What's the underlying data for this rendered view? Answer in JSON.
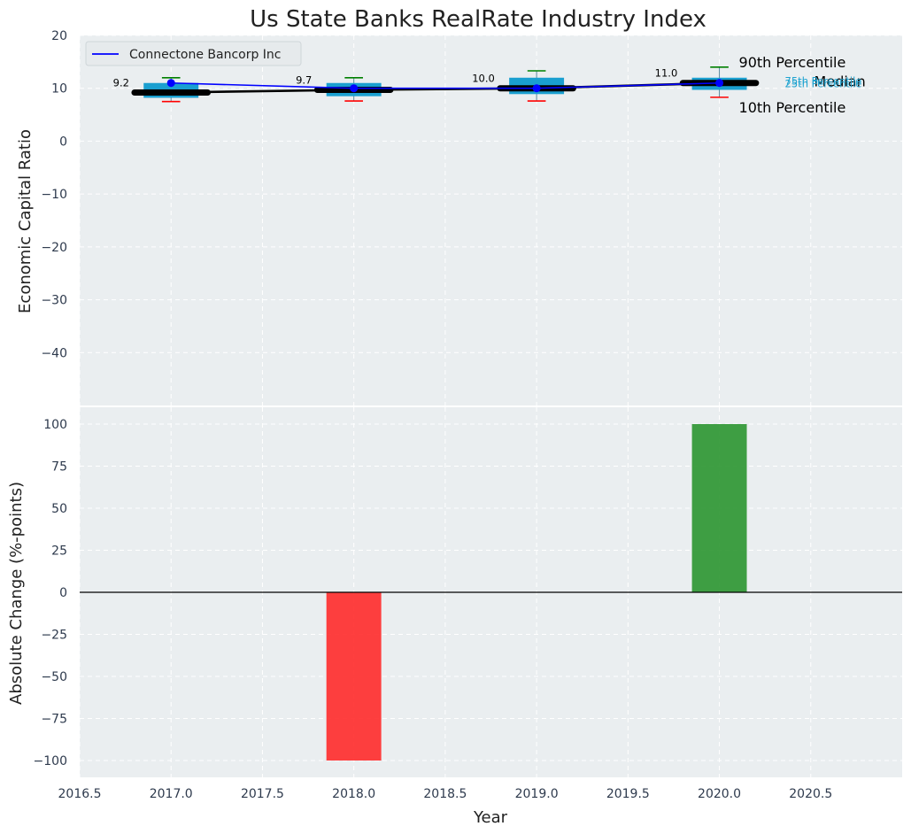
{
  "chart_data": [
    {
      "type": "box",
      "title": "Us State Banks RealRate Industry Index",
      "ylabel": "Economic Capital Ratio",
      "xlabel": "",
      "ylim": [
        -50,
        20
      ],
      "xlim": [
        2016.5,
        2021.0
      ],
      "yticks": [
        20,
        10,
        0,
        -10,
        -20,
        -30,
        -40
      ],
      "ytick_labels": [
        "20",
        "10",
        "0",
        "−10",
        "−20",
        "−30",
        "−40"
      ],
      "grid": true,
      "boxes": [
        {
          "x": 2017,
          "p10": 7.5,
          "q25": 8.2,
          "median": 9.2,
          "q75": 11.0,
          "p90": 12.0
        },
        {
          "x": 2018,
          "p10": 7.6,
          "q25": 8.5,
          "median": 9.7,
          "q75": 11.0,
          "p90": 12.0
        },
        {
          "x": 2019,
          "p10": 7.6,
          "q25": 8.9,
          "median": 10.0,
          "q75": 12.0,
          "p90": 13.3
        },
        {
          "x": 2020,
          "p10": 8.3,
          "q25": 9.7,
          "median": 11.0,
          "q75": 12.0,
          "p90": 14.0
        }
      ],
      "median_line": {
        "x": [
          2017,
          2018,
          2019,
          2020
        ],
        "y": [
          9.2,
          9.7,
          10.0,
          11.0
        ],
        "labels": [
          "9.2",
          "9.7",
          "10.0",
          "11.0"
        ]
      },
      "series": [
        {
          "name": "Connectone Bancorp Inc",
          "color": "#0000ff",
          "x": [
            2017,
            2018,
            2019,
            2020
          ],
          "y": [
            11.0,
            10.0,
            10.0,
            11.0
          ]
        }
      ],
      "annotations": {
        "p90": "90th Percentile",
        "median": "Median",
        "p10": "10th Percentile",
        "q75": "75th Percentile",
        "q25": "25th Percentile"
      },
      "legend_position": "top-left",
      "colors": {
        "box": "#1a9fd0",
        "median": "#000000",
        "p90": "#008000",
        "p10": "#ff0000",
        "series": "#0000ff"
      }
    },
    {
      "type": "bar",
      "ylabel": "Absolute Change (%-points)",
      "xlabel": "Year",
      "ylim": [
        -110,
        110
      ],
      "xlim": [
        2016.5,
        2021.0
      ],
      "yticks": [
        100,
        75,
        50,
        25,
        0,
        -25,
        -50,
        -75,
        -100
      ],
      "ytick_labels": [
        "100",
        "75",
        "50",
        "25",
        "0",
        "−25",
        "−50",
        "−75",
        "−100"
      ],
      "xticks": [
        2016.5,
        2017.0,
        2017.5,
        2018.0,
        2018.5,
        2019.0,
        2019.5,
        2020.0,
        2020.5
      ],
      "xtick_labels": [
        "2016.5",
        "2017.0",
        "2017.5",
        "2018.0",
        "2018.5",
        "2019.0",
        "2019.5",
        "2020.0",
        "2020.5"
      ],
      "x": [
        2018,
        2020
      ],
      "values": [
        -100,
        100
      ],
      "colors": [
        "#ff2a2a",
        "#2b9530"
      ],
      "grid": true
    }
  ]
}
